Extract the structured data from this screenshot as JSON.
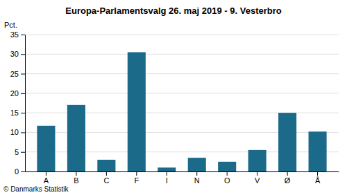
{
  "chart_data": {
    "type": "bar",
    "title": "Europa-Parlamentsvalg 26. maj 2019 - 9. Vesterbro",
    "categories": [
      "A",
      "B",
      "C",
      "F",
      "I",
      "N",
      "O",
      "V",
      "Ø",
      "Å"
    ],
    "values": [
      11.7,
      17.0,
      3.0,
      30.5,
      1.0,
      3.5,
      2.5,
      5.5,
      15.0,
      10.2
    ],
    "color": "#1b6a8a",
    "ylabel": "Pct.",
    "footer": "© Danmarks Statistik",
    "ylim": [
      0,
      35
    ],
    "yticks": [
      0,
      5,
      10,
      15,
      20,
      25,
      30,
      35
    ],
    "grid": true
  }
}
